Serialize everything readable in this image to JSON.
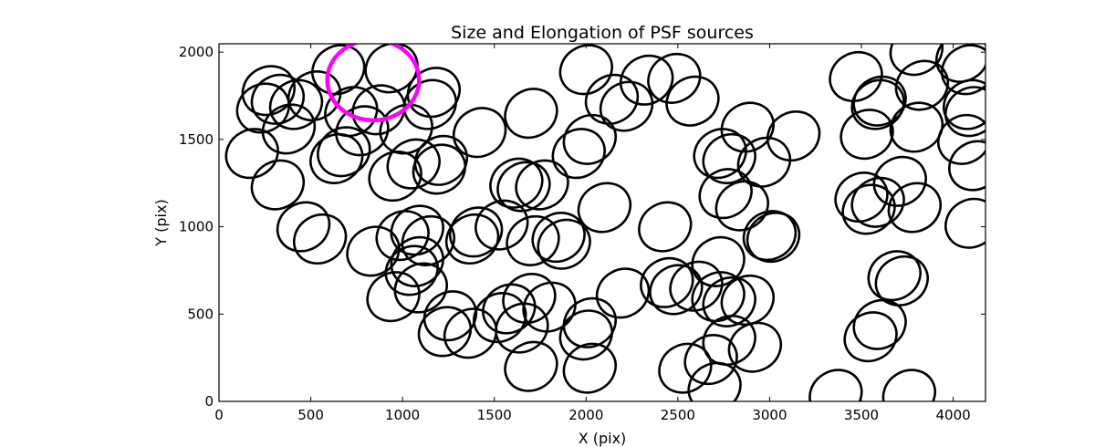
{
  "chart_data": {
    "type": "scatter",
    "title": "Size and Elongation of PSF sources",
    "xlabel": "X (pix)",
    "ylabel": "Y (pix)",
    "xlim": [
      0,
      4176
    ],
    "ylim": [
      0,
      2048
    ],
    "xticks": [
      0,
      500,
      1000,
      1500,
      2000,
      2500,
      3000,
      3500,
      4000
    ],
    "yticks": [
      0,
      500,
      1000,
      1500,
      2000
    ],
    "grid": false,
    "ellipse_color": "#000000",
    "highlight_color": "#ff00ff",
    "sources": [
      [
        270,
        1780,
        145,
        135,
        -30
      ],
      [
        320,
        1730,
        145,
        135,
        -30
      ],
      [
        240,
        1680,
        145,
        135,
        -30
      ],
      [
        420,
        1700,
        145,
        135,
        -30
      ],
      [
        520,
        1750,
        145,
        135,
        -30
      ],
      [
        180,
        1420,
        145,
        135,
        -30
      ],
      [
        380,
        1560,
        145,
        135,
        -30
      ],
      [
        320,
        1240,
        145,
        135,
        -30
      ],
      [
        650,
        1900,
        145,
        135,
        -30
      ],
      [
        720,
        1660,
        145,
        135,
        -30
      ],
      [
        780,
        1550,
        145,
        135,
        -30
      ],
      [
        870,
        1670,
        145,
        135,
        -30
      ],
      [
        940,
        1910,
        145,
        135,
        -30
      ],
      [
        1020,
        1560,
        145,
        135,
        -30
      ],
      [
        1170,
        1770,
        145,
        135,
        -30
      ],
      [
        1150,
        1700,
        145,
        135,
        -30
      ],
      [
        640,
        1390,
        145,
        135,
        -30
      ],
      [
        680,
        1430,
        145,
        135,
        -30
      ],
      [
        960,
        1290,
        145,
        135,
        -30
      ],
      [
        1060,
        1360,
        145,
        135,
        -30
      ],
      [
        1210,
        1380,
        145,
        135,
        -30
      ],
      [
        1200,
        1330,
        145,
        135,
        -30
      ],
      [
        1420,
        1540,
        145,
        135,
        -30
      ],
      [
        1700,
        1650,
        145,
        135,
        -30
      ],
      [
        2000,
        1900,
        145,
        135,
        -30
      ],
      [
        2140,
        1730,
        145,
        135,
        -30
      ],
      [
        2220,
        1690,
        145,
        135,
        -30
      ],
      [
        2330,
        1840,
        145,
        135,
        -30
      ],
      [
        2480,
        1850,
        145,
        135,
        -30
      ],
      [
        2580,
        1720,
        145,
        135,
        -30
      ],
      [
        2020,
        1500,
        145,
        135,
        -30
      ],
      [
        1960,
        1420,
        145,
        135,
        -30
      ],
      [
        1620,
        1250,
        145,
        135,
        -30
      ],
      [
        1660,
        1230,
        145,
        135,
        -30
      ],
      [
        1760,
        1240,
        145,
        135,
        -30
      ],
      [
        2100,
        1110,
        145,
        135,
        -30
      ],
      [
        2430,
        1000,
        145,
        135,
        -30
      ],
      [
        2880,
        1570,
        145,
        135,
        -30
      ],
      [
        3130,
        1520,
        145,
        135,
        -30
      ],
      [
        2730,
        1420,
        145,
        135,
        -30
      ],
      [
        2780,
        1390,
        145,
        135,
        -30
      ],
      [
        2970,
        1370,
        145,
        135,
        -30
      ],
      [
        2760,
        1190,
        145,
        135,
        -30
      ],
      [
        2850,
        1120,
        145,
        135,
        -30
      ],
      [
        3000,
        950,
        145,
        135,
        -30
      ],
      [
        3020,
        940,
        145,
        135,
        -30
      ],
      [
        2720,
        800,
        145,
        135,
        -30
      ],
      [
        460,
        1000,
        145,
        135,
        -30
      ],
      [
        550,
        930,
        145,
        135,
        -30
      ],
      [
        840,
        860,
        145,
        135,
        -30
      ],
      [
        1000,
        950,
        145,
        135,
        -30
      ],
      [
        1080,
        980,
        145,
        135,
        -30
      ],
      [
        1140,
        920,
        145,
        135,
        -30
      ],
      [
        1080,
        800,
        145,
        135,
        -30
      ],
      [
        1050,
        750,
        145,
        135,
        -30
      ],
      [
        1100,
        650,
        145,
        135,
        -30
      ],
      [
        950,
        600,
        145,
        135,
        -30
      ],
      [
        1380,
        930,
        145,
        135,
        -30
      ],
      [
        1400,
        970,
        145,
        135,
        -30
      ],
      [
        1540,
        1010,
        145,
        135,
        -30
      ],
      [
        1710,
        920,
        145,
        135,
        -30
      ],
      [
        1850,
        940,
        145,
        135,
        -30
      ],
      [
        1880,
        900,
        145,
        135,
        -30
      ],
      [
        2200,
        620,
        145,
        135,
        -30
      ],
      [
        2440,
        680,
        145,
        135,
        -30
      ],
      [
        2490,
        640,
        145,
        135,
        -30
      ],
      [
        2600,
        660,
        145,
        135,
        -30
      ],
      [
        2720,
        600,
        145,
        135,
        -30
      ],
      [
        2780,
        570,
        145,
        135,
        -30
      ],
      [
        2880,
        580,
        145,
        135,
        -30
      ],
      [
        2780,
        350,
        145,
        135,
        -30
      ],
      [
        2920,
        310,
        145,
        135,
        -30
      ],
      [
        2680,
        240,
        145,
        135,
        -30
      ],
      [
        2540,
        190,
        145,
        135,
        -30
      ],
      [
        2700,
        80,
        145,
        135,
        -30
      ],
      [
        3360,
        40,
        145,
        135,
        -30
      ],
      [
        3760,
        40,
        145,
        135,
        -30
      ],
      [
        1230,
        400,
        145,
        135,
        -30
      ],
      [
        1260,
        490,
        145,
        135,
        -30
      ],
      [
        1370,
        390,
        145,
        135,
        -30
      ],
      [
        1530,
        480,
        145,
        135,
        -30
      ],
      [
        1580,
        530,
        145,
        135,
        -30
      ],
      [
        1650,
        420,
        145,
        135,
        -30
      ],
      [
        1690,
        590,
        145,
        135,
        -30
      ],
      [
        1800,
        540,
        145,
        135,
        -30
      ],
      [
        1700,
        200,
        145,
        135,
        -30
      ],
      [
        2000,
        380,
        145,
        135,
        -30
      ],
      [
        2020,
        450,
        145,
        135,
        -30
      ],
      [
        2020,
        190,
        145,
        135,
        -30
      ],
      [
        3470,
        1860,
        145,
        135,
        -30
      ],
      [
        3590,
        1700,
        145,
        135,
        -30
      ],
      [
        3600,
        1720,
        145,
        135,
        -30
      ],
      [
        3530,
        1530,
        145,
        135,
        -30
      ],
      [
        3800,
        1570,
        145,
        135,
        -30
      ],
      [
        3830,
        1810,
        145,
        135,
        -30
      ],
      [
        3800,
        2010,
        145,
        135,
        -30
      ],
      [
        4050,
        1970,
        145,
        135,
        -30
      ],
      [
        4080,
        1900,
        145,
        135,
        -30
      ],
      [
        4090,
        1700,
        145,
        135,
        -30
      ],
      [
        4100,
        1660,
        145,
        135,
        -30
      ],
      [
        4060,
        1500,
        145,
        135,
        -30
      ],
      [
        4120,
        1350,
        145,
        135,
        -30
      ],
      [
        3500,
        1170,
        145,
        135,
        -30
      ],
      [
        3540,
        1100,
        145,
        135,
        -30
      ],
      [
        3590,
        1140,
        145,
        135,
        -30
      ],
      [
        3710,
        1260,
        145,
        135,
        -30
      ],
      [
        3790,
        1110,
        145,
        135,
        -30
      ],
      [
        4100,
        1020,
        145,
        135,
        -30
      ],
      [
        3680,
        720,
        145,
        135,
        -30
      ],
      [
        3720,
        690,
        145,
        135,
        -30
      ],
      [
        3600,
        440,
        145,
        135,
        -30
      ],
      [
        3550,
        370,
        145,
        135,
        -30
      ]
    ],
    "highlight": [
      840,
      1840,
      250,
      230,
      0
    ]
  }
}
